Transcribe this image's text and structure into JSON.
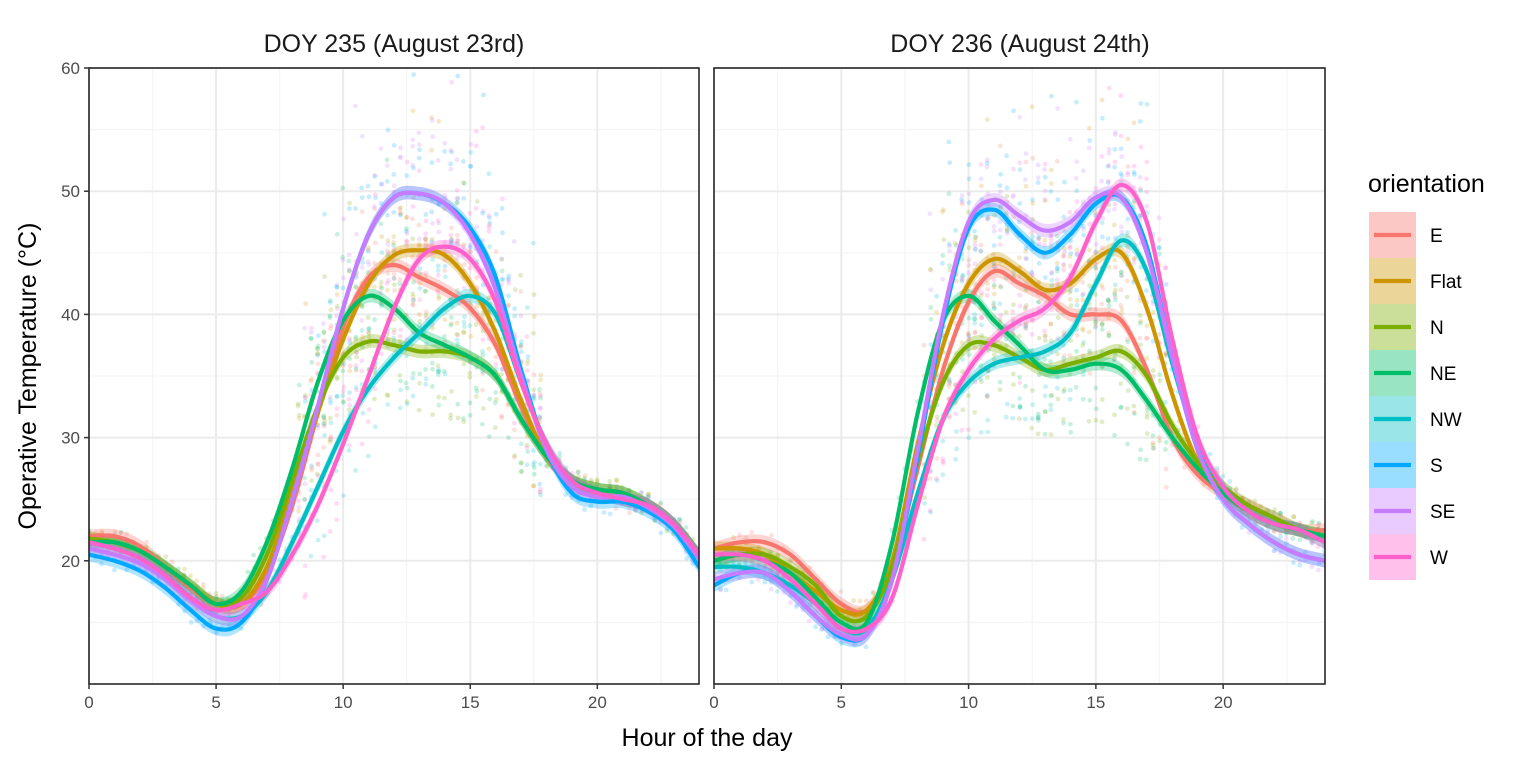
{
  "colors": {
    "E": "#F8766D",
    "Flat": "#CD9600",
    "N": "#7CAE00",
    "NE": "#00BE67",
    "NW": "#00BFC4",
    "S": "#00A9FF",
    "SE": "#C77CFF",
    "W": "#FF61CC",
    "grid_major": "#ebebeb",
    "grid_minor": "#f5f5f5",
    "panel_border": "#1a1a1a"
  },
  "chart_data": [
    {
      "type": "scatter",
      "title": "DOY 235 (August 23rd)",
      "xlabel": "Hour of the day",
      "ylabel": "Operative Temperature (°C)",
      "xlim": [
        0,
        24
      ],
      "ylim": [
        10,
        60
      ],
      "x_ticks": [
        0,
        5,
        10,
        15,
        20
      ],
      "x_tick_labels": [
        "0",
        "5",
        "10",
        "15",
        "20"
      ],
      "y_ticks": [
        20,
        30,
        40,
        50,
        60
      ],
      "y_tick_labels": [
        "20",
        "30",
        "40",
        "50",
        "60"
      ],
      "grid": true,
      "points_note": "semi-transparent observations per orientation; smoothed loess lines with confidence bands",
      "x": [
        0,
        1,
        2,
        3,
        4,
        5,
        6,
        7,
        8,
        9,
        10,
        11,
        12,
        13,
        14,
        15,
        16,
        17,
        18,
        19,
        20,
        21,
        22,
        23,
        24
      ],
      "series": [
        {
          "name": "E",
          "values": [
            22.0,
            22.0,
            21.2,
            19.5,
            17.8,
            16.5,
            16.5,
            19.0,
            24.5,
            32.0,
            39.0,
            43.0,
            44.0,
            43.0,
            42.0,
            40.5,
            37.5,
            32.5,
            28.5,
            26.5,
            25.5,
            25.0,
            24.5,
            23.0,
            20.5
          ]
        },
        {
          "name": "Flat",
          "values": [
            21.8,
            21.5,
            20.8,
            19.5,
            18.0,
            16.5,
            16.5,
            19.5,
            25.5,
            32.0,
            38.0,
            42.5,
            44.8,
            45.2,
            44.8,
            42.5,
            38.5,
            33.0,
            28.5,
            26.5,
            25.8,
            25.5,
            24.5,
            23.0,
            20.5
          ]
        },
        {
          "name": "N",
          "values": [
            21.8,
            21.5,
            20.8,
            19.5,
            18.0,
            16.5,
            17.0,
            20.5,
            26.5,
            32.5,
            36.5,
            37.8,
            37.5,
            37.0,
            37.0,
            36.5,
            35.0,
            31.5,
            28.5,
            26.5,
            25.8,
            25.5,
            24.5,
            23.0,
            20.5
          ]
        },
        {
          "name": "NE",
          "values": [
            21.5,
            21.5,
            20.8,
            19.5,
            18.0,
            16.5,
            17.5,
            21.5,
            27.5,
            34.5,
            39.5,
            41.5,
            40.5,
            38.5,
            37.5,
            36.5,
            35.0,
            31.5,
            28.5,
            26.5,
            25.8,
            25.5,
            24.5,
            23.0,
            20.5
          ]
        },
        {
          "name": "NW",
          "values": [
            21.5,
            21.0,
            20.2,
            18.8,
            17.0,
            15.5,
            15.5,
            17.5,
            21.5,
            26.0,
            30.5,
            34.0,
            36.5,
            38.5,
            40.5,
            41.5,
            40.0,
            34.5,
            29.5,
            26.5,
            25.5,
            25.0,
            24.5,
            23.0,
            20.5
          ]
        },
        {
          "name": "S",
          "values": [
            20.5,
            20.0,
            19.2,
            17.8,
            16.0,
            14.5,
            15.0,
            18.5,
            25.0,
            32.5,
            40.5,
            46.5,
            49.5,
            49.8,
            49.0,
            47.0,
            43.0,
            35.5,
            29.0,
            25.5,
            24.8,
            24.8,
            24.0,
            22.5,
            19.5
          ]
        },
        {
          "name": "SE",
          "values": [
            21.0,
            20.5,
            19.8,
            18.5,
            16.8,
            15.5,
            15.5,
            18.5,
            25.0,
            32.5,
            40.5,
            46.5,
            49.5,
            49.8,
            49.0,
            46.5,
            42.0,
            35.0,
            29.0,
            26.0,
            25.2,
            25.2,
            24.3,
            22.8,
            20.2
          ]
        },
        {
          "name": "W",
          "values": [
            21.5,
            21.0,
            20.2,
            18.8,
            17.0,
            16.0,
            16.5,
            17.5,
            20.5,
            24.5,
            29.5,
            35.0,
            40.5,
            44.5,
            45.5,
            44.5,
            41.0,
            34.5,
            29.5,
            26.5,
            25.5,
            25.0,
            24.5,
            23.0,
            20.5
          ]
        }
      ]
    },
    {
      "type": "scatter",
      "title": "DOY 236 (August 24th)",
      "xlabel": "Hour of the day",
      "ylabel": "Operative Temperature (°C)",
      "xlim": [
        0,
        24
      ],
      "ylim": [
        10,
        60
      ],
      "x_ticks": [
        0,
        5,
        10,
        15,
        20
      ],
      "x_tick_labels": [
        "0",
        "5",
        "10",
        "15",
        "20"
      ],
      "grid": true,
      "x": [
        0,
        1,
        2,
        3,
        4,
        5,
        6,
        7,
        8,
        9,
        10,
        11,
        12,
        13,
        14,
        15,
        16,
        17,
        18,
        19,
        20,
        21,
        22,
        23,
        24
      ],
      "series": [
        {
          "name": "E",
          "values": [
            21.0,
            21.5,
            21.5,
            20.5,
            18.5,
            16.5,
            16.0,
            19.5,
            27.5,
            35.5,
            41.0,
            43.5,
            42.5,
            41.5,
            40.0,
            40.0,
            39.5,
            35.5,
            30.0,
            27.0,
            25.5,
            24.5,
            23.5,
            22.5,
            22.5
          ]
        },
        {
          "name": "Flat",
          "values": [
            21.0,
            21.0,
            20.5,
            19.0,
            17.5,
            16.0,
            16.0,
            20.0,
            29.5,
            37.5,
            42.5,
            44.5,
            43.5,
            42.0,
            42.5,
            44.5,
            45.0,
            40.5,
            33.5,
            28.0,
            25.5,
            24.0,
            23.0,
            22.5,
            22.0
          ]
        },
        {
          "name": "N",
          "values": [
            20.0,
            20.5,
            20.5,
            19.5,
            18.0,
            15.5,
            15.5,
            19.5,
            28.0,
            34.5,
            37.5,
            37.5,
            36.5,
            35.5,
            36.0,
            36.5,
            37.0,
            35.0,
            31.0,
            28.0,
            26.0,
            24.5,
            23.5,
            22.5,
            22.0
          ]
        },
        {
          "name": "NE",
          "values": [
            20.0,
            20.5,
            20.0,
            19.0,
            17.0,
            15.0,
            15.0,
            21.5,
            32.0,
            39.5,
            41.5,
            39.5,
            37.5,
            35.5,
            35.5,
            36.0,
            35.5,
            33.0,
            30.0,
            27.5,
            25.5,
            24.0,
            23.0,
            22.5,
            22.0
          ]
        },
        {
          "name": "NW",
          "values": [
            19.5,
            19.5,
            19.0,
            18.0,
            16.5,
            14.5,
            14.5,
            18.5,
            25.5,
            31.5,
            34.5,
            36.0,
            36.5,
            37.0,
            38.5,
            42.5,
            46.0,
            43.5,
            36.0,
            29.5,
            26.0,
            24.0,
            23.0,
            22.5,
            21.5
          ]
        },
        {
          "name": "S",
          "values": [
            18.0,
            19.0,
            19.0,
            17.5,
            15.5,
            13.8,
            14.0,
            18.5,
            28.5,
            39.5,
            47.0,
            48.5,
            46.5,
            45.0,
            46.5,
            49.0,
            49.5,
            45.5,
            36.5,
            29.0,
            25.0,
            23.0,
            21.5,
            20.5,
            20.0
          ]
        },
        {
          "name": "SE",
          "values": [
            18.5,
            19.0,
            19.0,
            17.5,
            15.5,
            14.0,
            14.0,
            18.5,
            29.0,
            40.0,
            47.5,
            49.3,
            48.0,
            46.8,
            47.5,
            49.5,
            49.5,
            45.0,
            36.5,
            29.0,
            25.0,
            23.0,
            21.5,
            20.5,
            20.0
          ]
        },
        {
          "name": "W",
          "values": [
            20.5,
            20.5,
            20.0,
            18.5,
            16.5,
            14.5,
            14.5,
            17.0,
            24.5,
            31.5,
            35.5,
            38.0,
            39.5,
            40.5,
            43.0,
            47.5,
            50.5,
            47.5,
            38.0,
            30.0,
            26.0,
            24.0,
            23.0,
            22.5,
            21.5
          ]
        }
      ]
    }
  ],
  "labels": {
    "facet_left": "DOY 235 (August 23rd)",
    "facet_right": "DOY 236 (August 24th)",
    "xlabel": "Hour of the day",
    "ylabel": "Operative Temperature (°C)",
    "legend_title": "orientation",
    "legend_items": [
      "E",
      "Flat",
      "N",
      "NE",
      "NW",
      "S",
      "SE",
      "W"
    ]
  }
}
